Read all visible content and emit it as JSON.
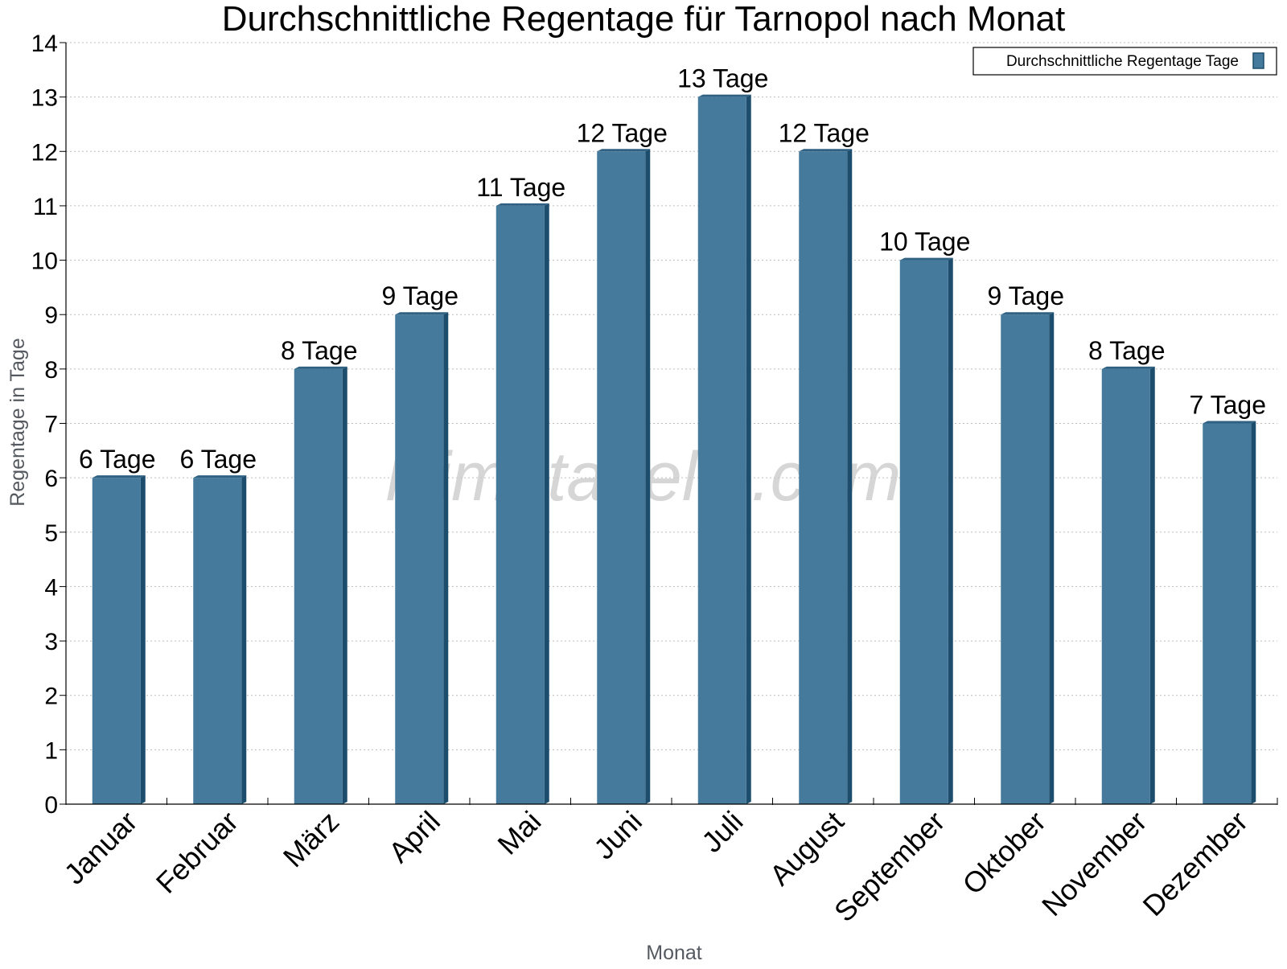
{
  "chart_data": {
    "type": "bar",
    "title": "Durchschnittliche Regentage für Tarnopol nach Monat",
    "xlabel": "Monat",
    "ylabel": "Regentage in Tage",
    "categories": [
      "Januar",
      "Februar",
      "März",
      "April",
      "Mai",
      "Juni",
      "Juli",
      "August",
      "September",
      "Oktober",
      "November",
      "Dezember"
    ],
    "series": [
      {
        "name": "Durchschnittliche Regentage Tage",
        "values": [
          6,
          6,
          8,
          9,
          11,
          12,
          13,
          12,
          10,
          9,
          8,
          7
        ],
        "color": "#457a9c",
        "side_color": "#1d4d6d",
        "top_color": "#2f6183"
      }
    ],
    "data_label_suffix": " Tage",
    "ylim": [
      0,
      14
    ],
    "yticks": [
      0,
      1,
      2,
      3,
      4,
      5,
      6,
      7,
      8,
      9,
      10,
      11,
      12,
      13,
      14
    ],
    "grid": true,
    "legend_position": "top-right",
    "watermark": "klimatabelle.com"
  }
}
